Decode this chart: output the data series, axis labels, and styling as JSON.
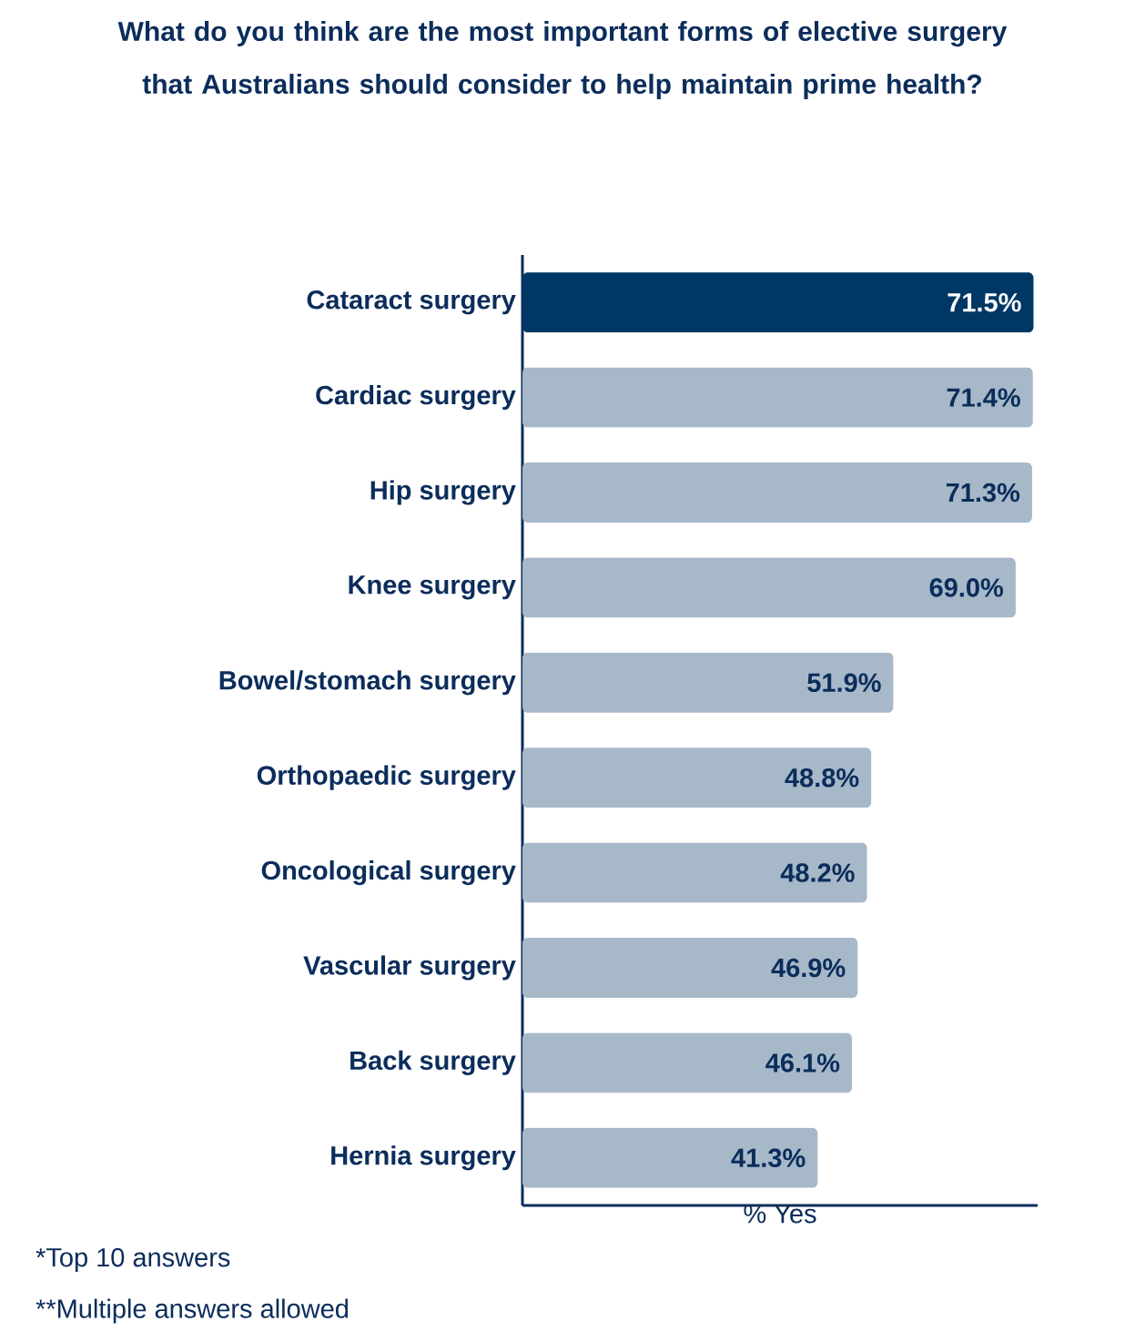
{
  "chart_data": {
    "type": "bar",
    "orientation": "horizontal",
    "title": "What do you think are the most important forms of elective surgery that Australians should consider to help maintain prime health?",
    "xlabel": "% Yes",
    "categories": [
      "Cataract surgery",
      "Cardiac surgery",
      "Hip surgery",
      "Knee surgery",
      "Bowel/stomach surgery",
      "Orthopaedic surgery",
      "Oncological surgery",
      "Vascular surgery",
      "Back surgery",
      "Hernia surgery"
    ],
    "values": [
      71.5,
      71.4,
      71.3,
      69.0,
      51.9,
      48.8,
      48.2,
      46.9,
      46.1,
      41.3
    ],
    "colors": [
      "#003865",
      "#a7b8c9",
      "#a7b8c9",
      "#a7b8c9",
      "#a7b8c9",
      "#a7b8c9",
      "#a7b8c9",
      "#a7b8c9",
      "#a7b8c9",
      "#a7b8c9"
    ],
    "value_labels": [
      "71.5%",
      "71.4%",
      "71.3%",
      "69.0%",
      "51.9%",
      "48.8%",
      "48.2%",
      "46.9%",
      "46.1%",
      "41.3%"
    ],
    "annotations": [
      "*Top 10 answers",
      "**Multiple answers allowed"
    ]
  }
}
